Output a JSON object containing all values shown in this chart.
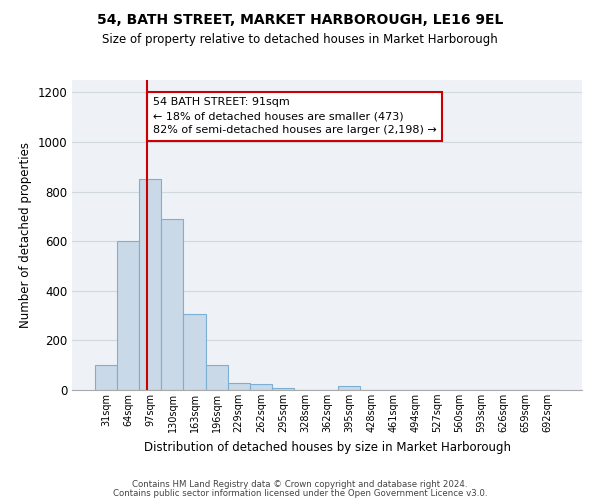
{
  "title1": "54, BATH STREET, MARKET HARBOROUGH, LE16 9EL",
  "title2": "Size of property relative to detached houses in Market Harborough",
  "xlabel": "Distribution of detached houses by size in Market Harborough",
  "ylabel": "Number of detached properties",
  "bin_labels": [
    "31sqm",
    "64sqm",
    "97sqm",
    "130sqm",
    "163sqm",
    "196sqm",
    "229sqm",
    "262sqm",
    "295sqm",
    "328sqm",
    "362sqm",
    "395sqm",
    "428sqm",
    "461sqm",
    "494sqm",
    "527sqm",
    "560sqm",
    "593sqm",
    "626sqm",
    "659sqm",
    "692sqm"
  ],
  "bar_values": [
    100,
    600,
    850,
    690,
    305,
    100,
    30,
    25,
    10,
    0,
    0,
    15,
    0,
    0,
    0,
    0,
    0,
    0,
    0,
    0,
    0
  ],
  "bar_color": "#c9d9e8",
  "bar_edge_color": "#7bafd4",
  "vline_x": 1.85,
  "vline_color": "#cc0000",
  "ylim": [
    0,
    1250
  ],
  "yticks": [
    0,
    200,
    400,
    600,
    800,
    1000,
    1200
  ],
  "annotation_text": "54 BATH STREET: 91sqm\n← 18% of detached houses are smaller (473)\n82% of semi-detached houses are larger (2,198) →",
  "annotation_box_color": "#ffffff",
  "annotation_box_edge_color": "#cc0000",
  "footer1": "Contains HM Land Registry data © Crown copyright and database right 2024.",
  "footer2": "Contains public sector information licensed under the Open Government Licence v3.0.",
  "grid_color": "#d0d8e0",
  "background_color": "#eef2f7"
}
